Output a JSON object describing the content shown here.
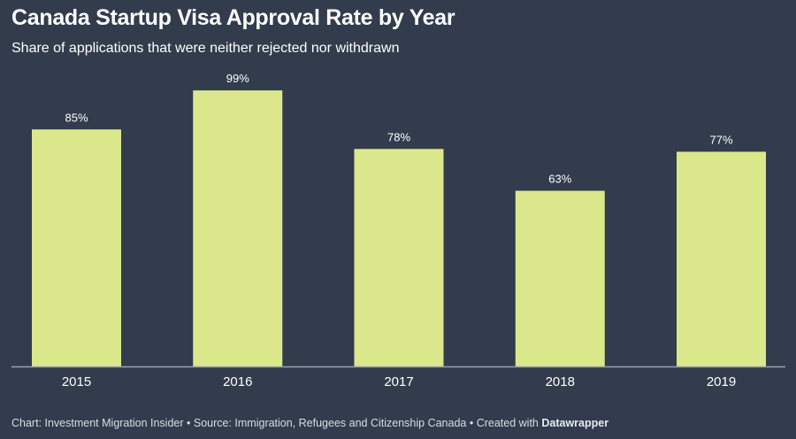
{
  "header": {
    "title": "Canada Startup Visa Approval Rate by Year",
    "subtitle": "Share of applications that were neither rejected nor withdrawn"
  },
  "footer": {
    "chart_credit": "Chart: Investment Migration Insider",
    "separator": " • ",
    "source": "Source: Immigration, Refugees and Citizenship Canada",
    "created_with": "Created with ",
    "tool": "Datawrapper"
  },
  "colors": {
    "background": "#323c4d",
    "bar": "#dbe78b",
    "baseline": "#9aa1ab",
    "text": "#ffffff"
  },
  "chart_data": {
    "type": "bar",
    "title": "Canada Startup Visa Approval Rate by Year",
    "subtitle": "Share of applications that were neither rejected nor withdrawn",
    "categories": [
      "2015",
      "2016",
      "2017",
      "2018",
      "2019"
    ],
    "values": [
      85,
      99,
      78,
      63,
      77
    ],
    "value_labels": [
      "85%",
      "99%",
      "78%",
      "63%",
      "77%"
    ],
    "unit": "%",
    "xlabel": "",
    "ylabel": "",
    "ylim": [
      0,
      100
    ],
    "grid": false,
    "legend": "none"
  }
}
